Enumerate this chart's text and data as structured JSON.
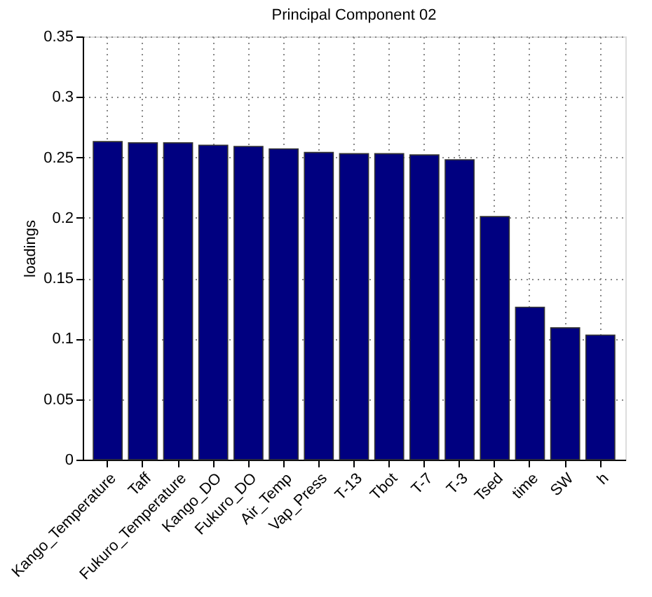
{
  "chart_data": {
    "type": "bar",
    "title": "Principal Component 02",
    "ylabel": "loadings",
    "categories": [
      "Kango_Temperature",
      "Taff",
      "Fukuro_Temperature",
      "Kango_DO",
      "Fukuro_DO",
      "Air_Temp",
      "Vap_Press",
      "T-13",
      "Tbot",
      "T-7",
      "T-3",
      "Tsed",
      "time",
      "SW",
      "h"
    ],
    "values": [
      0.263,
      0.262,
      0.262,
      0.26,
      0.259,
      0.257,
      0.254,
      0.253,
      0.253,
      0.252,
      0.248,
      0.201,
      0.126,
      0.109,
      0.103
    ],
    "color": "#000080",
    "ylim": [
      0,
      0.35
    ],
    "yticks": [
      0,
      0.05,
      0.1,
      0.15,
      0.2,
      0.25,
      0.3,
      0.35
    ],
    "grid": true
  }
}
